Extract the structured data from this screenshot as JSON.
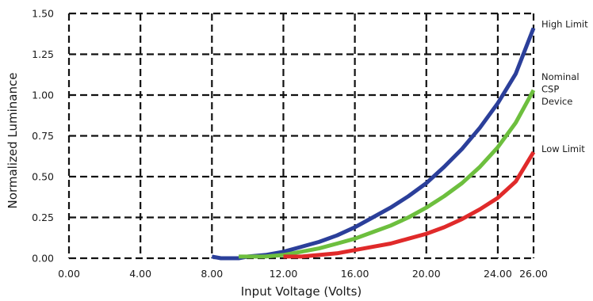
{
  "chart_data": {
    "type": "line",
    "xlabel": "Input Voltage (Volts)",
    "ylabel": "Normalized Luminance",
    "xlim": [
      0,
      26
    ],
    "ylim": [
      0,
      1.5
    ],
    "x_ticks": [
      "0.00",
      "4.00",
      "8.00",
      "12.00",
      "16.00",
      "20.00",
      "24.00",
      "26.00"
    ],
    "x_tick_values": [
      0,
      4,
      8,
      12,
      16,
      20,
      24,
      26
    ],
    "y_ticks": [
      "0.00",
      "0.25",
      "0.50",
      "0.75",
      "1.00",
      "1.25",
      "1.50"
    ],
    "y_tick_values": [
      0,
      0.25,
      0.5,
      0.75,
      1.0,
      1.25,
      1.5
    ],
    "grid": "dashed",
    "legend": "inline labels at right end of curves",
    "series": [
      {
        "name": "High Limit",
        "label_lines": [
          "High Limit"
        ],
        "color": "#2b3f9a",
        "x": [
          8.0,
          8.5,
          9.0,
          9.5,
          10.0,
          11.0,
          12.0,
          13.0,
          14.0,
          15.0,
          16.0,
          17.0,
          18.0,
          19.0,
          20.0,
          21.0,
          22.0,
          23.0,
          24.0,
          25.0,
          26.0
        ],
        "y": [
          0.01,
          0.0,
          0.0,
          0.0,
          0.01,
          0.02,
          0.04,
          0.07,
          0.1,
          0.14,
          0.19,
          0.25,
          0.31,
          0.38,
          0.46,
          0.56,
          0.67,
          0.8,
          0.95,
          1.13,
          1.41
        ]
      },
      {
        "name": "Nominal CSP Device",
        "label_lines": [
          "Nominal",
          "CSP",
          "Device"
        ],
        "color": "#6dbf3e",
        "x": [
          9.5,
          10.0,
          11.0,
          12.0,
          13.0,
          14.0,
          15.0,
          16.0,
          17.0,
          18.0,
          19.0,
          20.0,
          21.0,
          22.0,
          23.0,
          24.0,
          25.0,
          26.0
        ],
        "y": [
          0.01,
          0.01,
          0.01,
          0.02,
          0.04,
          0.06,
          0.09,
          0.12,
          0.16,
          0.2,
          0.25,
          0.31,
          0.38,
          0.46,
          0.56,
          0.68,
          0.83,
          1.03
        ]
      },
      {
        "name": "Low Limit",
        "label_lines": [
          "Low Limit"
        ],
        "color": "#e02a2a",
        "x": [
          12.0,
          13.0,
          14.0,
          15.0,
          16.0,
          17.0,
          18.0,
          19.0,
          20.0,
          21.0,
          22.0,
          23.0,
          24.0,
          25.0,
          26.0
        ],
        "y": [
          0.01,
          0.01,
          0.02,
          0.03,
          0.05,
          0.07,
          0.09,
          0.12,
          0.15,
          0.19,
          0.24,
          0.3,
          0.37,
          0.47,
          0.65
        ]
      }
    ]
  }
}
